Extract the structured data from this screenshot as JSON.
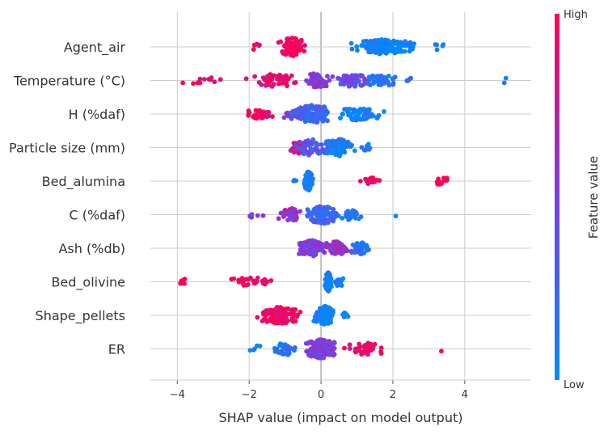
{
  "chart_data": {
    "type": "scatter",
    "subtype": "shap-beeswarm",
    "title": "",
    "xlabel": "SHAP value (impact on model output)",
    "ylabel": "",
    "xlim": [
      -4.75,
      5.85
    ],
    "xticks": [
      -4,
      -2,
      0,
      2,
      4
    ],
    "xtick_labels": [
      "−4",
      "−2",
      "0",
      "2",
      "4"
    ],
    "grid": "horizontal row lines + vertical lines at ticks",
    "colorbar": {
      "label": "Feature value",
      "high_label": "High",
      "low_label": "Low",
      "low_color": "#008bfb",
      "high_color": "#ff0052"
    },
    "features": [
      {
        "name": "Agent_air",
        "clusters": [
          [
            -1.3,
            -0.3,
            115,
            0.98,
            0.95
          ],
          [
            0.7,
            2.8,
            140,
            0.05,
            0.7
          ],
          [
            -2.0,
            -1.6,
            5,
            0.98,
            0.1
          ],
          [
            2.9,
            3.5,
            5,
            0.05,
            0.1
          ]
        ]
      },
      {
        "name": "Temperature (°C)",
        "clusters": [
          [
            -2.2,
            -0.4,
            50,
            0.9,
            0.55
          ],
          [
            -0.6,
            0.4,
            50,
            0.55,
            0.7
          ],
          [
            0.3,
            1.5,
            60,
            0.4,
            0.55
          ],
          [
            1.0,
            2.3,
            40,
            0.15,
            0.5
          ],
          [
            -4.3,
            -2.3,
            12,
            0.92,
            0.15
          ],
          [
            2.0,
            2.8,
            6,
            0.25,
            0.1
          ],
          [
            4.6,
            5.4,
            2,
            0.05,
            0.05
          ]
        ]
      },
      {
        "name": "H (%daf)",
        "clusters": [
          [
            -2.3,
            -1.2,
            35,
            0.95,
            0.3
          ],
          [
            -1.2,
            -0.3,
            30,
            0.45,
            0.5
          ],
          [
            -1.0,
            0.5,
            120,
            0.25,
            0.95
          ],
          [
            0.2,
            1.9,
            60,
            0.05,
            0.55
          ]
        ]
      },
      {
        "name": "Particle size (mm)",
        "clusters": [
          [
            -1.0,
            0.0,
            40,
            0.8,
            0.6
          ],
          [
            -0.8,
            0.4,
            50,
            0.35,
            0.85
          ],
          [
            0.0,
            1.0,
            80,
            0.1,
            0.85
          ],
          [
            1.0,
            1.5,
            8,
            0.1,
            0.2
          ]
        ]
      },
      {
        "name": "Bed_alumina",
        "clusters": [
          [
            -0.5,
            -0.2,
            110,
            0.05,
            1.0
          ],
          [
            -0.8,
            -0.6,
            3,
            0.05,
            0.05
          ],
          [
            1.0,
            1.7,
            15,
            0.98,
            0.15
          ],
          [
            3.1,
            3.6,
            20,
            0.98,
            0.2
          ]
        ]
      },
      {
        "name": "C (%daf)",
        "clusters": [
          [
            -1.3,
            -0.4,
            45,
            0.6,
            0.55
          ],
          [
            -0.5,
            0.6,
            100,
            0.25,
            0.95
          ],
          [
            0.5,
            1.2,
            30,
            0.1,
            0.45
          ],
          [
            -2.2,
            -1.5,
            6,
            0.5,
            0.1
          ],
          [
            2.0,
            2.1,
            1,
            0.05,
            0.05
          ]
        ]
      },
      {
        "name": "Ash (%db)",
        "clusters": [
          [
            -0.8,
            0.3,
            90,
            0.55,
            0.8
          ],
          [
            0.0,
            0.9,
            60,
            0.6,
            0.65
          ],
          [
            0.7,
            1.5,
            35,
            0.15,
            0.5
          ]
        ]
      },
      {
        "name": "Bed_olivine",
        "clusters": [
          [
            0.1,
            0.3,
            100,
            0.05,
            1.0
          ],
          [
            0.3,
            0.7,
            12,
            0.05,
            0.3
          ],
          [
            -4.0,
            -3.7,
            6,
            0.98,
            0.1
          ],
          [
            -2.7,
            -1.2,
            30,
            0.98,
            0.3
          ]
        ]
      },
      {
        "name": "Shape_pellets",
        "clusters": [
          [
            -1.9,
            -0.4,
            120,
            0.98,
            0.85
          ],
          [
            -0.3,
            0.5,
            110,
            0.05,
            0.95
          ],
          [
            0.5,
            0.8,
            6,
            0.05,
            0.15
          ]
        ]
      },
      {
        "name": "ER",
        "clusters": [
          [
            -0.6,
            0.6,
            150,
            0.5,
            1.0
          ],
          [
            -1.5,
            -0.5,
            40,
            0.15,
            0.55
          ],
          [
            -2.1,
            -1.5,
            5,
            0.1,
            0.1
          ],
          [
            0.5,
            2.1,
            40,
            0.95,
            0.5
          ],
          [
            3.3,
            3.4,
            1,
            0.98,
            0.05
          ]
        ]
      }
    ]
  }
}
